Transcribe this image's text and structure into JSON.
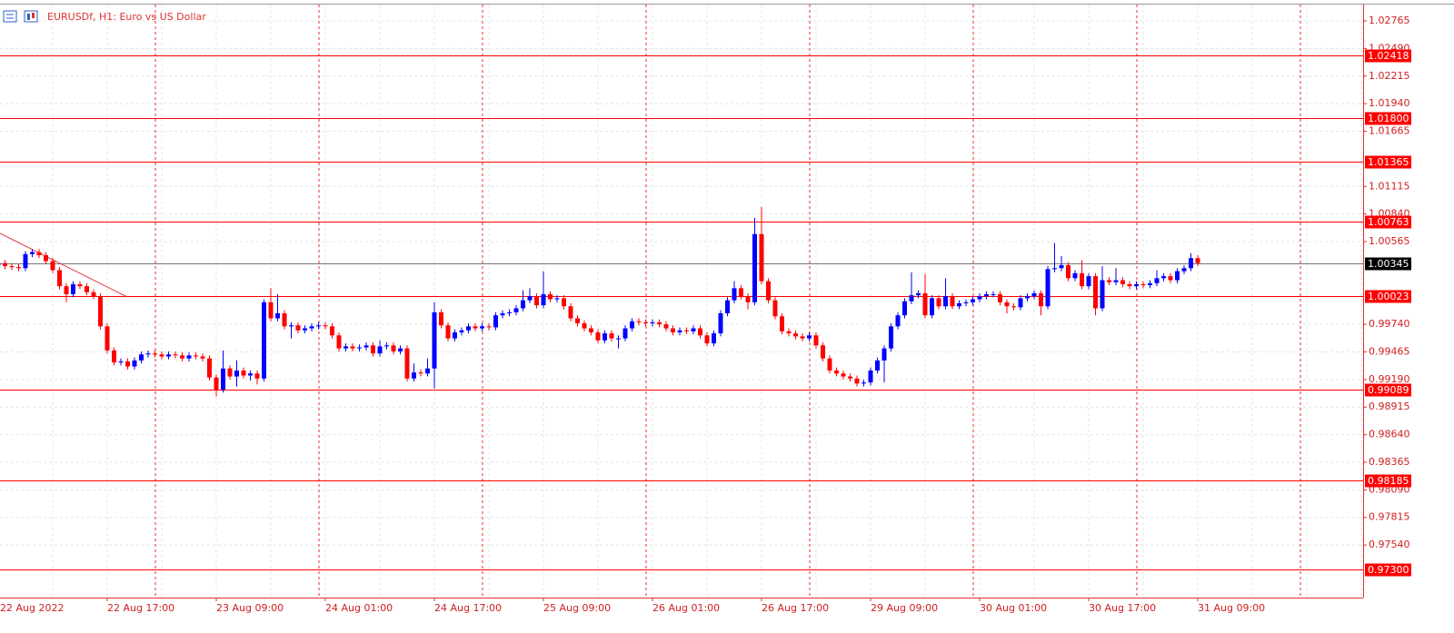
{
  "chart_data": {
    "type": "candlestick",
    "title": "EURUSDf, H1:  Euro vs US Dollar",
    "up_color": "#0000ff",
    "down_color": "#ff0000",
    "level_color": "#ff0000",
    "current_color": "#000000",
    "grid": true,
    "ylim": [
      0.97016,
      1.02928
    ],
    "yticks": [
      1.02765,
      {
        "value": 1.0249,
        "label": "1.02490"
      },
      1.02215,
      {
        "value": 1.0194,
        "label": "1.01940"
      },
      1.01665,
      1.01115,
      {
        "value": 1.0084,
        "label": "1.00840"
      },
      1.00565,
      {
        "value": 0.9974,
        "label": "0.99740"
      },
      0.99465,
      {
        "value": 0.9919,
        "label": "0.99190"
      },
      0.98915,
      {
        "value": 0.9864,
        "label": "0.98640"
      },
      0.98365,
      {
        "value": 0.9809,
        "label": "0.98090"
      },
      0.97815,
      {
        "value": 0.9754,
        "label": "0.97540"
      }
    ],
    "levels": {
      "values": [
        1.02418,
        1.018,
        1.01365,
        1.00763,
        1.00023,
        0.99089,
        0.98185,
        0.973
      ],
      "value_labels": [
        "1.02418",
        "1.01800",
        "1.01365",
        "1.00763",
        "1.00023",
        "0.99089",
        "0.98185",
        "0.97300"
      ]
    },
    "current_price": 1.00345,
    "categories": [
      "22 Aug 2022",
      null,
      null,
      null,
      null,
      null,
      null,
      null,
      null,
      null,
      null,
      null,
      null,
      null,
      null,
      null,
      "22 Aug 17:00",
      null,
      null,
      null,
      null,
      null,
      null,
      null,
      null,
      null,
      null,
      null,
      null,
      null,
      null,
      null,
      "23 Aug 09:00",
      null,
      null,
      null,
      null,
      null,
      null,
      null,
      null,
      null,
      null,
      null,
      null,
      null,
      null,
      null,
      "24 Aug 01:00",
      null,
      null,
      null,
      null,
      null,
      null,
      null,
      null,
      null,
      null,
      null,
      null,
      null,
      null,
      null,
      "24 Aug 17:00",
      null,
      null,
      null,
      null,
      null,
      null,
      null,
      null,
      null,
      null,
      null,
      null,
      null,
      null,
      null,
      "25 Aug 09:00",
      null,
      null,
      null,
      null,
      null,
      null,
      null,
      null,
      null,
      null,
      null,
      null,
      null,
      null,
      null,
      "26 Aug 01:00",
      null,
      null,
      null,
      null,
      null,
      null,
      null,
      null,
      null,
      null,
      null,
      null,
      null,
      null,
      null,
      "26 Aug 17:00",
      null,
      null,
      null,
      null,
      null,
      null,
      null,
      null,
      null,
      null,
      null,
      null,
      null,
      null,
      null,
      "29 Aug 09:00",
      null,
      null,
      null,
      null,
      null,
      null,
      null,
      null,
      null,
      null,
      null,
      null,
      null,
      null,
      null,
      "30 Aug 01:00",
      null,
      null,
      null,
      null,
      null,
      null,
      null,
      null,
      null,
      null,
      null,
      null,
      null,
      null,
      null,
      "30 Aug 17:00",
      null,
      null,
      null,
      null,
      null,
      null,
      null,
      null,
      null,
      null,
      null,
      null,
      null,
      null,
      null,
      "31 Aug 09:00"
    ],
    "open": [
      1.0033,
      1.0035,
      1.0032,
      1.0031,
      1.003,
      1.0044,
      1.0046,
      1.0043,
      1.0037,
      1.0028,
      1.0012,
      1.0004,
      1.0014,
      1.0012,
      1.0006,
      1.0002,
      0.9972,
      0.9948,
      0.9936,
      0.9937,
      0.9932,
      0.9938,
      0.9944,
      0.9945,
      0.9944,
      0.9942,
      0.9944,
      0.9943,
      0.994,
      0.9943,
      0.9942,
      0.994,
      0.9921,
      0.9909,
      0.993,
      0.9922,
      0.9928,
      0.9923,
      0.9925,
      0.992,
      0.9996,
      0.998,
      0.9985,
      0.9972,
      0.9973,
      0.9968,
      0.997,
      0.9972,
      0.9973,
      0.9972,
      0.9963,
      0.995,
      0.9952,
      0.995,
      0.9951,
      0.9953,
      0.9945,
      0.9952,
      0.9953,
      0.9947,
      0.995,
      0.992,
      0.9926,
      0.9925,
      0.993,
      0.9986,
      0.9973,
      0.996,
      0.9966,
      0.9968,
      0.9972,
      0.997,
      0.9972,
      0.9971,
      0.9983,
      0.9985,
      0.9986,
      0.999,
      0.9998,
      1.0002,
      0.9993,
      1.0004,
      0.9999,
      1.0,
      0.9992,
      0.998,
      0.9975,
      0.997,
      0.9966,
      0.9958,
      0.9965,
      0.996,
      0.996,
      0.997,
      0.9977,
      0.9976,
      0.9975,
      0.9976,
      0.9974,
      0.997,
      0.9966,
      0.9968,
      0.9967,
      0.997,
      0.9963,
      0.9955,
      0.9965,
      0.9985,
      0.9998,
      1.001,
      1.0002,
      0.9996,
      1.0064,
      1.0017,
      0.9998,
      0.9982,
      0.9967,
      0.9965,
      0.9962,
      0.996,
      0.9963,
      0.9953,
      0.994,
      0.9928,
      0.9925,
      0.9922,
      0.992,
      0.9915,
      0.9916,
      0.9928,
      0.9938,
      0.995,
      0.9972,
      0.9983,
      0.9997,
      1.0003,
      1.0005,
      0.9983,
      1.0,
      0.9992,
      1.0002,
      0.9992,
      0.9995,
      0.9996,
      0.9999,
      1.0002,
      1.0004,
      1.0004,
      0.9996,
      0.9992,
      0.9991,
      1.0,
      1.0002,
      1.0005,
      0.9992,
      1.0029,
      1.003,
      1.0033,
      1.002,
      1.0025,
      1.0012,
      1.0022,
      0.999,
      1.0018,
      1.0016,
      1.0018,
      1.0014,
      1.0012,
      1.0014,
      1.0013,
      1.0015,
      1.002,
      1.0022,
      1.0018,
      1.0027,
      1.003,
      1.004
    ],
    "high": [
      1.0038,
      1.0038,
      1.0035,
      1.0034,
      1.0047,
      1.0049,
      1.0049,
      1.0046,
      1.004,
      1.0031,
      1.0015,
      1.0017,
      1.0017,
      1.0015,
      1.0009,
      1.0005,
      0.9975,
      0.9951,
      0.994,
      0.994,
      0.9941,
      0.9947,
      0.9948,
      0.9948,
      0.9947,
      0.9947,
      0.9947,
      0.9946,
      0.9946,
      0.9946,
      0.9945,
      0.9943,
      0.9924,
      0.9948,
      0.9933,
      0.9938,
      0.9931,
      0.9928,
      0.9928,
      0.9999,
      1.001,
      1.0004,
      0.9988,
      0.9976,
      0.9976,
      0.9973,
      0.9975,
      0.9976,
      0.9976,
      0.9975,
      0.9966,
      0.9955,
      0.9955,
      0.9954,
      0.9956,
      0.9956,
      0.9958,
      0.9956,
      0.9956,
      0.9953,
      0.9953,
      0.9935,
      0.9929,
      0.994,
      0.9996,
      0.9989,
      0.9976,
      0.9969,
      0.9971,
      0.9975,
      0.9975,
      0.9975,
      0.9975,
      0.9986,
      0.9988,
      0.9989,
      0.9993,
      1.0008,
      1.001,
      1.0005,
      1.0027,
      1.0007,
      1.0003,
      1.0003,
      0.9995,
      0.9983,
      0.9978,
      0.9973,
      0.9969,
      0.9968,
      0.9968,
      0.9963,
      0.9973,
      0.998,
      0.998,
      0.9979,
      0.9979,
      0.9979,
      0.9977,
      0.9973,
      0.9971,
      0.9971,
      0.9973,
      0.9973,
      0.9966,
      0.9968,
      0.9988,
      1.0001,
      1.0017,
      1.0013,
      1.0005,
      1.008,
      1.0091,
      1.002,
      1.0001,
      0.9985,
      0.997,
      0.9968,
      0.9965,
      0.9966,
      0.9966,
      0.9956,
      0.9943,
      0.9931,
      0.9928,
      0.9925,
      0.9923,
      0.9919,
      0.9931,
      0.9941,
      0.9953,
      0.9975,
      0.9986,
      1.0,
      1.0026,
      1.0008,
      1.0024,
      1.0003,
      1.0003,
      1.002,
      1.0005,
      0.9998,
      0.9999,
      1.0002,
      1.0005,
      1.0007,
      1.0007,
      1.0007,
      0.9999,
      0.9995,
      1.0003,
      1.0005,
      1.0008,
      1.0008,
      1.0032,
      1.0055,
      1.0042,
      1.0036,
      1.0028,
      1.0038,
      1.0025,
      1.0025,
      1.0032,
      1.0021,
      1.003,
      1.0021,
      1.0017,
      1.0017,
      1.0017,
      1.0018,
      1.0028,
      1.0025,
      1.0025,
      1.003,
      1.0033,
      1.0045,
      1.0043
    ],
    "low": [
      1.003,
      1.0029,
      1.0028,
      1.0027,
      1.0027,
      1.0041,
      1.004,
      1.0034,
      1.0025,
      1.0009,
      0.9996,
      1.0001,
      1.0009,
      1.0003,
      0.9999,
      0.9969,
      0.9945,
      0.9933,
      0.9933,
      0.9929,
      0.9929,
      0.9935,
      0.9941,
      0.9941,
      0.9939,
      0.9939,
      0.994,
      0.9937,
      0.9937,
      0.9939,
      0.9937,
      0.9918,
      0.9902,
      0.9906,
      0.9919,
      0.9912,
      0.992,
      0.9918,
      0.9914,
      0.9917,
      0.9977,
      0.9977,
      0.9969,
      0.996,
      0.9965,
      0.9965,
      0.9967,
      0.9969,
      0.9969,
      0.996,
      0.9947,
      0.9947,
      0.9947,
      0.9947,
      0.9948,
      0.9942,
      0.9942,
      0.9949,
      0.9944,
      0.9944,
      0.9917,
      0.9917,
      0.9922,
      0.9922,
      0.991,
      0.997,
      0.9957,
      0.9957,
      0.9963,
      0.9965,
      0.9967,
      0.9967,
      0.9968,
      0.9968,
      0.998,
      0.9982,
      0.9983,
      0.9987,
      0.9995,
      0.999,
      0.999,
      0.9996,
      0.9996,
      0.9989,
      0.9977,
      0.9972,
      0.9967,
      0.9963,
      0.9955,
      0.9955,
      0.9957,
      0.995,
      0.9957,
      0.9967,
      0.9973,
      0.9972,
      0.9972,
      0.9971,
      0.9967,
      0.9963,
      0.9963,
      0.9964,
      0.9964,
      0.996,
      0.9952,
      0.9952,
      0.9962,
      0.9982,
      0.9995,
      0.9999,
      0.9989,
      0.9993,
      1.0014,
      0.9995,
      0.9979,
      0.9964,
      0.9962,
      0.9959,
      0.9957,
      0.9957,
      0.995,
      0.9937,
      0.9925,
      0.9922,
      0.9919,
      0.9917,
      0.9912,
      0.9912,
      0.9913,
      0.9925,
      0.9916,
      0.9947,
      0.9969,
      0.998,
      0.9994,
      1.0,
      0.998,
      0.998,
      0.9989,
      0.9989,
      0.9989,
      0.9989,
      0.9992,
      0.9993,
      0.9996,
      0.9999,
      1.0001,
      0.9993,
      0.9985,
      0.9988,
      0.9988,
      0.9997,
      0.9999,
      0.9983,
      0.9989,
      1.0026,
      1.0027,
      1.0017,
      1.0017,
      1.0009,
      1.0009,
      0.9983,
      0.9987,
      1.0013,
      1.0013,
      1.0011,
      1.0009,
      1.0009,
      1.001,
      1.001,
      1.0012,
      1.0017,
      1.0015,
      1.0015,
      1.0024,
      1.0027,
      1.0032
    ],
    "close": [
      1.0035,
      1.0032,
      1.0031,
      1.003,
      1.0044,
      1.0046,
      1.0043,
      1.0037,
      1.0028,
      1.0012,
      1.0004,
      1.0014,
      1.0012,
      1.0006,
      1.0002,
      0.9972,
      0.9948,
      0.9936,
      0.9937,
      0.9932,
      0.9938,
      0.9944,
      0.9945,
      0.9944,
      0.9942,
      0.9944,
      0.9943,
      0.994,
      0.9943,
      0.9942,
      0.994,
      0.9921,
      0.9909,
      0.993,
      0.9922,
      0.9928,
      0.9923,
      0.9925,
      0.992,
      0.9996,
      0.998,
      0.9985,
      0.9972,
      0.9973,
      0.9968,
      0.997,
      0.9972,
      0.9973,
      0.9972,
      0.9963,
      0.995,
      0.9952,
      0.995,
      0.9951,
      0.9953,
      0.9945,
      0.9952,
      0.9953,
      0.9947,
      0.995,
      0.992,
      0.9926,
      0.9925,
      0.993,
      0.9986,
      0.9973,
      0.996,
      0.9966,
      0.9968,
      0.9972,
      0.997,
      0.9972,
      0.9971,
      0.9983,
      0.9985,
      0.9986,
      0.999,
      0.9998,
      1.0002,
      0.9993,
      1.0004,
      0.9999,
      1.0,
      0.9992,
      0.998,
      0.9975,
      0.997,
      0.9966,
      0.9958,
      0.9965,
      0.996,
      0.996,
      0.997,
      0.9977,
      0.9976,
      0.9975,
      0.9976,
      0.9974,
      0.997,
      0.9966,
      0.9968,
      0.9967,
      0.997,
      0.9963,
      0.9955,
      0.9965,
      0.9985,
      0.9998,
      1.001,
      1.0002,
      0.9996,
      1.0064,
      1.0017,
      0.9998,
      0.9982,
      0.9967,
      0.9965,
      0.9962,
      0.996,
      0.9963,
      0.9953,
      0.994,
      0.9928,
      0.9925,
      0.9922,
      0.992,
      0.9915,
      0.9916,
      0.9928,
      0.9938,
      0.995,
      0.9972,
      0.9983,
      0.9997,
      1.0003,
      1.0005,
      0.9983,
      1.0,
      0.9992,
      1.0002,
      0.9992,
      0.9995,
      0.9996,
      0.9999,
      1.0002,
      1.0004,
      1.0004,
      0.9996,
      0.9992,
      0.9991,
      1.0,
      1.0002,
      1.0005,
      0.9992,
      1.0029,
      1.003,
      1.0033,
      1.002,
      1.0025,
      1.0012,
      1.0022,
      0.999,
      1.0018,
      1.0016,
      1.0018,
      1.0014,
      1.0012,
      1.0014,
      1.0013,
      1.0015,
      1.002,
      1.0022,
      1.0018,
      1.0027,
      1.003,
      1.004,
      1.0035
    ]
  }
}
